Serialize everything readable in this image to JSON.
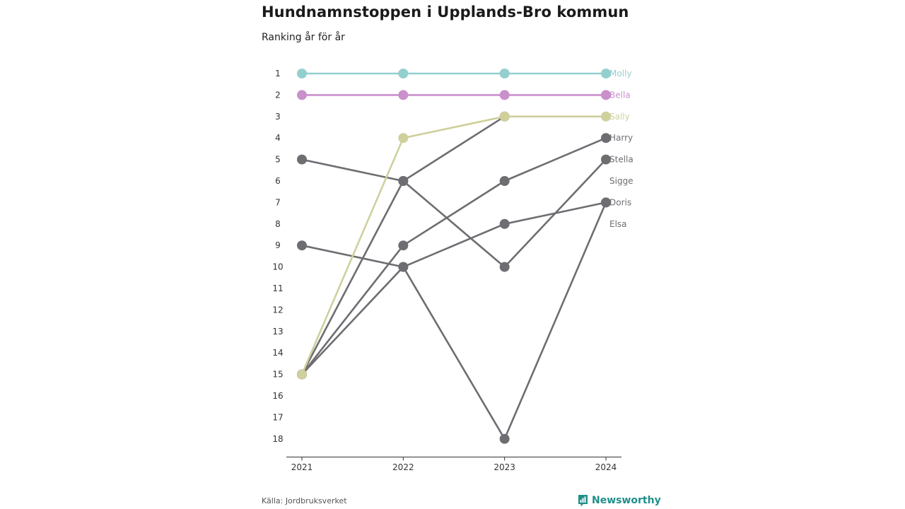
{
  "header": {
    "title": "Hundnamnstoppen i Upplands-Bro kommun",
    "subtitle": "Ranking år för år"
  },
  "footer": {
    "source": "Källa: Jordbruksverket",
    "brand": "Newsworthy",
    "brand_icon": "newsworthy-logo-icon",
    "brand_color": "#1f8f8a"
  },
  "chart_data": {
    "type": "line",
    "subtype": "bump",
    "x": [
      "2021",
      "2022",
      "2023",
      "2024"
    ],
    "y_ticks": [
      1,
      2,
      3,
      4,
      5,
      6,
      7,
      8,
      9,
      10,
      11,
      12,
      13,
      14,
      15,
      16,
      17,
      18
    ],
    "ylim": [
      18,
      1
    ],
    "y_inverted": true,
    "grid": false,
    "series": [
      {
        "name": "Harry",
        "values": [
          15,
          9,
          6,
          4
        ],
        "color": "#6e6d72"
      },
      {
        "name": "Stella",
        "values": [
          5,
          6,
          10,
          5
        ],
        "color": "#6e6d72"
      },
      {
        "name": "Sigge",
        "values": [
          15,
          6,
          3,
          null
        ],
        "color": "#6e6d72"
      },
      {
        "name": "Doris",
        "values": [
          15,
          10,
          8,
          7
        ],
        "color": "#6e6d72"
      },
      {
        "name": "Elsa",
        "values": [
          9,
          10,
          18,
          7
        ],
        "color": "#6e6d72"
      },
      {
        "name": "Molly",
        "values": [
          1,
          1,
          1,
          1
        ],
        "color": "#94cfcf"
      },
      {
        "name": "Bella",
        "values": [
          2,
          2,
          2,
          2
        ],
        "color": "#c990cc"
      },
      {
        "name": "Sally",
        "values": [
          15,
          4,
          3,
          3
        ],
        "color": "#cfd09b"
      }
    ],
    "end_labels": [
      {
        "name": "Molly",
        "rank": 1,
        "color": "#94cfcf"
      },
      {
        "name": "Bella",
        "rank": 2,
        "color": "#c990cc"
      },
      {
        "name": "Sally",
        "rank": 3,
        "color": "#cfd09b"
      },
      {
        "name": "Harry",
        "rank": 4,
        "color": "#6e6d72"
      },
      {
        "name": "Stella",
        "rank": 5,
        "color": "#6e6d72"
      },
      {
        "name": "Sigge",
        "rank": 6,
        "color": "#6e6d72"
      },
      {
        "name": "Doris",
        "rank": 7,
        "color": "#6e6d72"
      },
      {
        "name": "Elsa",
        "rank": 8,
        "color": "#6e6d72"
      }
    ]
  }
}
